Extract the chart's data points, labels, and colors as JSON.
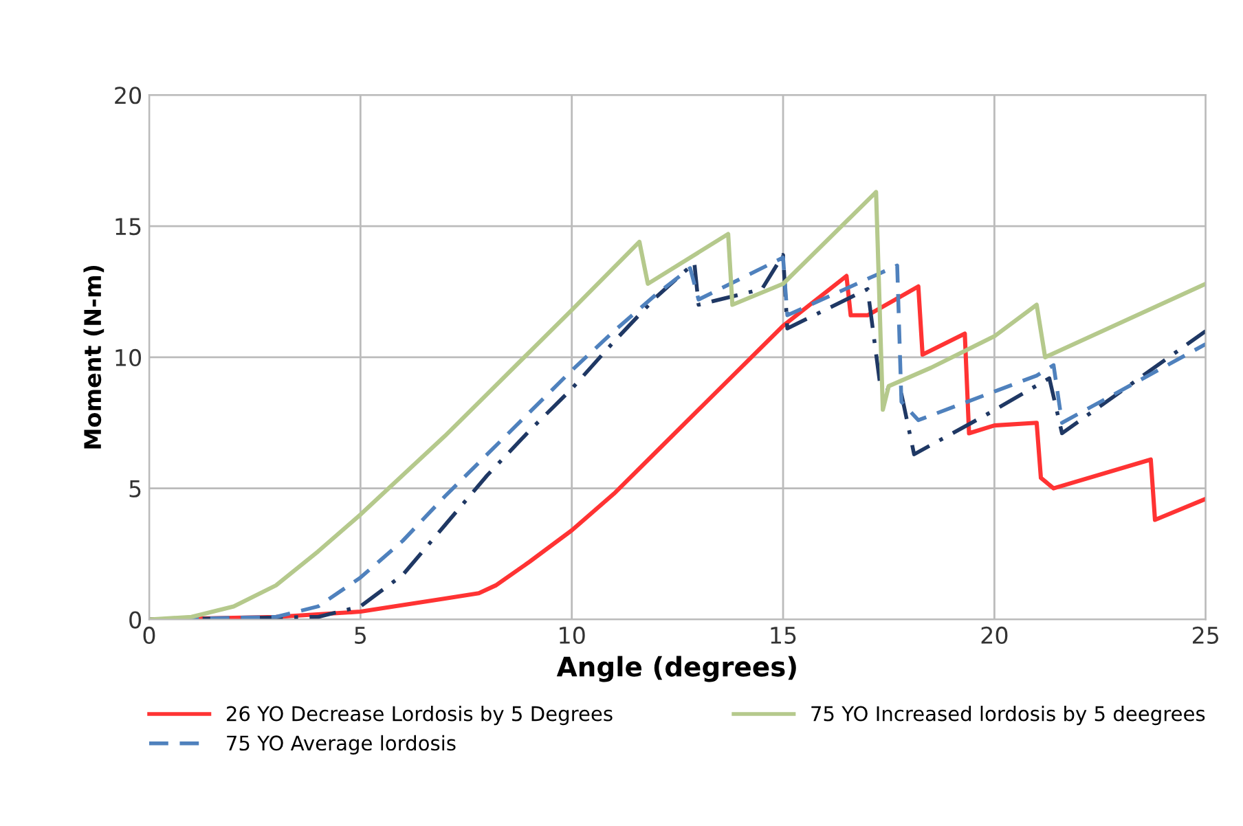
{
  "chart_data": {
    "type": "line",
    "xlabel": "Angle (degrees)",
    "ylabel": "Moment (N-m)",
    "xlim": [
      0,
      25
    ],
    "ylim": [
      0,
      20
    ],
    "xticks": [
      0,
      5,
      10,
      15,
      20,
      25
    ],
    "yticks": [
      0,
      5,
      10,
      15,
      20
    ],
    "grid": true,
    "legend": "bottom",
    "marker": "none",
    "series": [
      {
        "name": "26 YO Decrease Lordosis by 5 Degrees",
        "color": "#ff3333",
        "line_style": "solid",
        "x": [
          0,
          3,
          5,
          7,
          7.8,
          8.2,
          9,
          10,
          11,
          12,
          13,
          14,
          15,
          16.5,
          16.6,
          17.0,
          18.2,
          18.3,
          19.3,
          19.4,
          20,
          21.0,
          21.1,
          21.4,
          23.7,
          23.8,
          25
        ],
        "values": [
          0,
          0.1,
          0.3,
          0.8,
          1.0,
          1.3,
          2.2,
          3.4,
          4.8,
          6.4,
          8.0,
          9.6,
          11.2,
          13.1,
          11.6,
          11.6,
          12.7,
          10.1,
          10.9,
          7.1,
          7.4,
          7.5,
          5.4,
          5.0,
          6.1,
          3.8,
          4.6
        ]
      },
      {
        "color": "#1f3864",
        "line_style": "dashdot",
        "x": [
          0,
          4,
          5,
          6,
          7,
          8,
          9,
          10,
          11,
          12,
          12.9,
          13.0,
          14.5,
          15.0,
          15.1,
          17.0,
          17.3,
          17.8,
          18.1,
          19.8,
          21.3,
          21.6,
          25
        ],
        "values": [
          0,
          0.1,
          0.5,
          1.7,
          3.6,
          5.5,
          7.2,
          8.8,
          10.6,
          12.3,
          13.6,
          12.0,
          12.6,
          13.9,
          11.1,
          12.6,
          8.9,
          8.6,
          6.3,
          7.8,
          9.2,
          7.1,
          11.0
        ]
      },
      {
        "name": "75 YO Average lordosis",
        "color": "#4f81bd",
        "line_style": "dashed",
        "x": [
          0,
          3,
          4,
          5,
          6,
          7,
          8,
          9,
          10,
          11,
          12,
          12.8,
          13.0,
          15.0,
          15.1,
          17.7,
          17.8,
          18.2,
          21.0,
          21.4,
          21.6,
          25
        ],
        "values": [
          0,
          0.1,
          0.5,
          1.6,
          3.0,
          4.7,
          6.3,
          7.9,
          9.5,
          11.0,
          12.4,
          13.4,
          12.2,
          13.8,
          11.6,
          13.5,
          8.3,
          7.6,
          9.3,
          9.7,
          7.5,
          10.5
        ]
      },
      {
        "name": "75 YO Increased lordosis by 5 deegrees",
        "color": "#b5c98c",
        "line_style": "solid",
        "x": [
          0,
          1,
          2,
          3,
          4,
          5,
          6,
          7,
          8,
          9,
          10,
          11.6,
          11.8,
          13.7,
          13.8,
          15,
          17.2,
          17.36,
          17.5,
          18.5,
          19.5,
          20,
          21.0,
          21.2,
          25
        ],
        "values": [
          0,
          0.1,
          0.5,
          1.3,
          2.6,
          4.0,
          5.5,
          7.0,
          8.6,
          10.2,
          11.8,
          14.4,
          12.8,
          14.7,
          12.0,
          12.8,
          16.3,
          8.0,
          8.9,
          9.6,
          10.4,
          10.8,
          12.0,
          10.0,
          12.8
        ]
      }
    ]
  }
}
